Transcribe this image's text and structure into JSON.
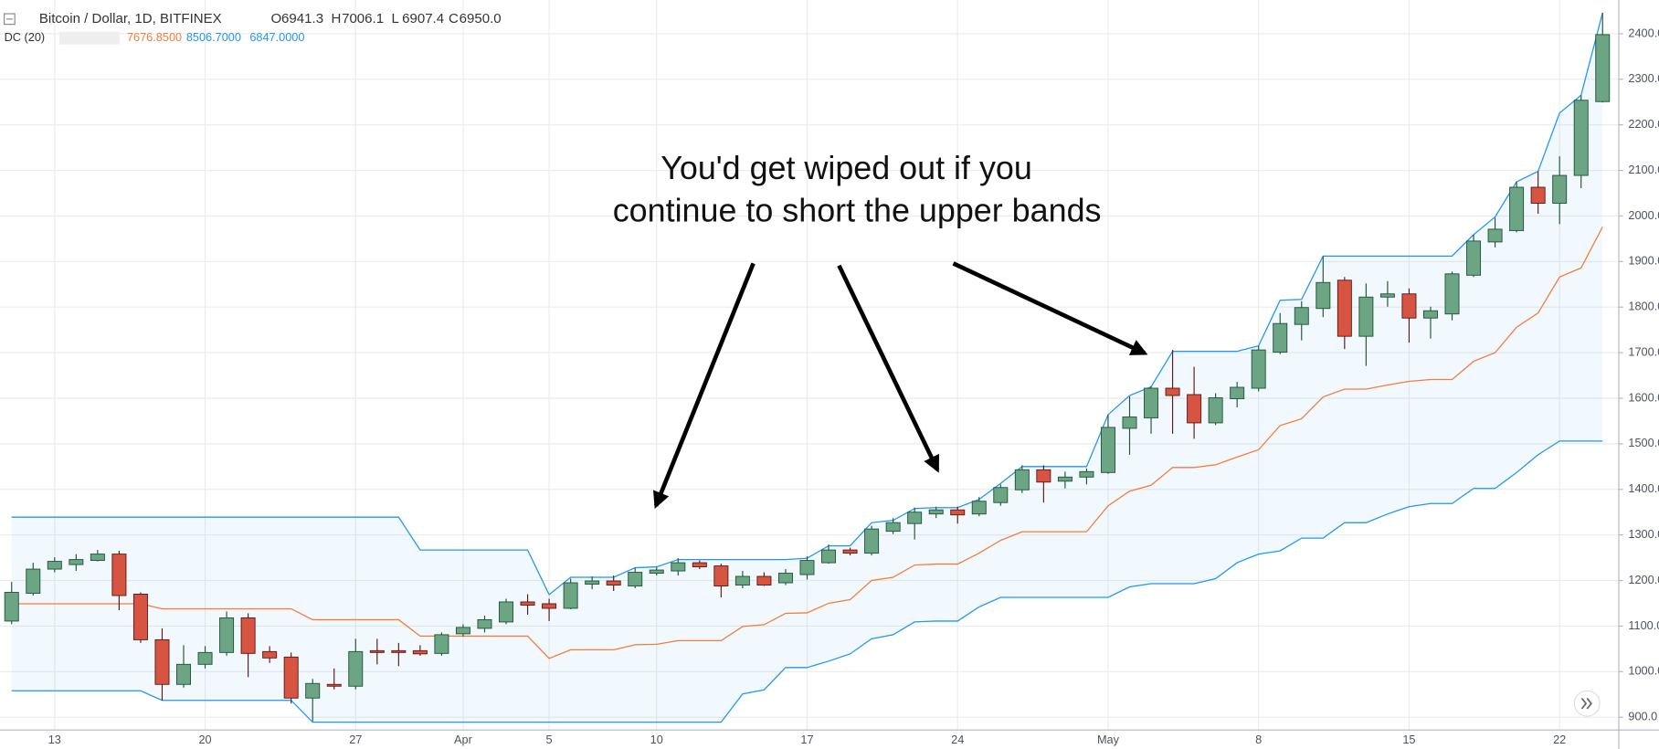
{
  "chart_data": {
    "type": "candlestick",
    "title": "Bitcoin / Dollar, 1D, BITFINEX",
    "ohlc_legend": [
      {
        "label": "O",
        "value": "6941.3"
      },
      {
        "label": "H",
        "value": "7006.1"
      },
      {
        "label": "L",
        "value": "6907.4"
      },
      {
        "label": "C",
        "value": "6950.0"
      }
    ],
    "indicator": {
      "label": "DC (20)",
      "values": [
        "7676.8500",
        "8506.7000",
        "6847.0000"
      ]
    },
    "annotation": [
      "You'd get wiped out if you",
      "continue to short the upper bands"
    ],
    "categories": [
      null,
      null,
      "13",
      null,
      null,
      null,
      null,
      null,
      null,
      "20",
      null,
      null,
      null,
      null,
      null,
      null,
      "27",
      null,
      null,
      null,
      null,
      "Apr",
      null,
      null,
      null,
      "5",
      null,
      null,
      null,
      null,
      "10",
      null,
      null,
      null,
      null,
      null,
      null,
      "17",
      null,
      null,
      null,
      null,
      null,
      null,
      "24",
      null,
      null,
      null,
      null,
      null,
      null,
      "May",
      null,
      null,
      null,
      null,
      null,
      null,
      "8",
      null,
      null,
      null,
      null,
      null,
      null,
      "15",
      null,
      null,
      null,
      null,
      null,
      null,
      "22",
      null,
      null
    ],
    "open": [
      1111,
      1172,
      1225,
      1235,
      1244,
      1258,
      1170,
      1070,
      972,
      1016,
      1042,
      1118,
      1044,
      1032,
      942,
      972,
      968,
      1046,
      1046,
      1046,
      1040,
      1083,
      1095,
      1109,
      1153,
      1149,
      1139,
      1192,
      1199,
      1188,
      1216,
      1221,
      1239,
      1232,
      1190,
      1209,
      1195,
      1213,
      1239,
      1267,
      1260,
      1308,
      1325,
      1346,
      1355,
      1346,
      1371,
      1399,
      1443,
      1418,
      1427,
      1437,
      1534,
      1557,
      1622,
      1608,
      1546,
      1599,
      1622,
      1701,
      1762,
      1797,
      1859,
      1736,
      1822,
      1829,
      1776,
      1785,
      1870,
      1943,
      1968,
      2063,
      2028,
      2089,
      2251
    ],
    "high": [
      1197,
      1239,
      1251,
      1258,
      1267,
      1265,
      1174,
      1095,
      1058,
      1056,
      1132,
      1128,
      1056,
      1042,
      984,
      1007,
      1072,
      1072,
      1063,
      1058,
      1086,
      1104,
      1123,
      1160,
      1170,
      1160,
      1204,
      1209,
      1211,
      1228,
      1230,
      1249,
      1244,
      1237,
      1221,
      1218,
      1225,
      1253,
      1279,
      1272,
      1320,
      1337,
      1360,
      1362,
      1362,
      1383,
      1411,
      1453,
      1453,
      1439,
      1446,
      1564,
      1604,
      1627,
      1706,
      1669,
      1611,
      1636,
      1715,
      1787,
      1813,
      1912,
      1866,
      1852,
      1857,
      1841,
      1801,
      1878,
      1959,
      1996,
      2075,
      2098,
      2131,
      2265,
      2446
    ],
    "low": [
      1104,
      1167,
      1218,
      1221,
      1242,
      1135,
      1063,
      937,
      965,
      1007,
      1035,
      988,
      1019,
      930,
      891,
      961,
      961,
      1016,
      1012,
      1035,
      1035,
      1077,
      1086,
      1104,
      1125,
      1111,
      1137,
      1181,
      1177,
      1183,
      1211,
      1211,
      1225,
      1163,
      1183,
      1188,
      1190,
      1202,
      1237,
      1255,
      1255,
      1302,
      1290,
      1337,
      1325,
      1341,
      1364,
      1392,
      1371,
      1402,
      1411,
      1434,
      1476,
      1522,
      1522,
      1511,
      1541,
      1580,
      1615,
      1697,
      1727,
      1778,
      1708,
      1671,
      1801,
      1722,
      1731,
      1771,
      1866,
      1931,
      1964,
      2005,
      1982,
      2061,
      2249
    ],
    "close": [
      1174,
      1225,
      1242,
      1246,
      1258,
      1167,
      1070,
      972,
      1016,
      1042,
      1118,
      1040,
      1030,
      942,
      974,
      968,
      1044,
      1042,
      1042,
      1039,
      1081,
      1097,
      1114,
      1153,
      1146,
      1139,
      1195,
      1199,
      1190,
      1218,
      1223,
      1239,
      1230,
      1188,
      1209,
      1190,
      1216,
      1244,
      1267,
      1260,
      1313,
      1327,
      1350,
      1355,
      1344,
      1374,
      1404,
      1443,
      1416,
      1427,
      1439,
      1536,
      1559,
      1622,
      1606,
      1546,
      1601,
      1624,
      1706,
      1764,
      1799,
      1854,
      1736,
      1822,
      1829,
      1776,
      1792,
      1873,
      1945,
      1971,
      2063,
      2028,
      2089,
      2254,
      2398
    ],
    "up_color": "#6ba583",
    "down_color": "#d75442",
    "channel": {
      "middle": {
        "color": "#f57c3a",
        "values": [
          1149,
          1149,
          1149,
          1149,
          1149,
          1149,
          1149,
          1138,
          1138,
          1138,
          1138,
          1138,
          1138,
          1138,
          1114,
          1114,
          1114,
          1114,
          1114,
          1078,
          1078,
          1078,
          1078,
          1078,
          1078,
          1029,
          1048,
          1048,
          1048,
          1059,
          1060,
          1068,
          1068,
          1068,
          1099,
          1103,
          1128,
          1129,
          1150,
          1158,
          1200,
          1207,
          1234,
          1236,
          1236,
          1260,
          1288,
          1307,
          1307,
          1307,
          1307,
          1364,
          1396,
          1409,
          1448,
          1448,
          1454,
          1471,
          1487,
          1540,
          1555,
          1603,
          1620,
          1620,
          1629,
          1637,
          1641,
          1641,
          1681,
          1700,
          1756,
          1787,
          1866,
          1886,
          1976
        ]
      },
      "upper": {
        "color": "#2196f3",
        "values": [
          1339,
          1339,
          1339,
          1339,
          1339,
          1339,
          1339,
          1339,
          1339,
          1339,
          1339,
          1339,
          1339,
          1339,
          1339,
          1339,
          1339,
          1339,
          1339,
          1267,
          1267,
          1267,
          1267,
          1267,
          1267,
          1169,
          1207,
          1207,
          1207,
          1228,
          1230,
          1246,
          1246,
          1246,
          1246,
          1246,
          1246,
          1249,
          1276,
          1276,
          1327,
          1332,
          1358,
          1360,
          1360,
          1378,
          1413,
          1450,
          1450,
          1450,
          1450,
          1564,
          1606,
          1625,
          1703,
          1703,
          1703,
          1703,
          1715,
          1815,
          1817,
          1912,
          1912,
          1912,
          1912,
          1912,
          1912,
          1912,
          1959,
          1998,
          2075,
          2098,
          2226,
          2265,
          2446
        ]
      },
      "lower": {
        "color": "#2196f3",
        "values": [
          958,
          958,
          958,
          958,
          958,
          958,
          958,
          937,
          937,
          937,
          937,
          937,
          937,
          937,
          889,
          889,
          889,
          889,
          889,
          889,
          889,
          889,
          889,
          889,
          889,
          889,
          889,
          889,
          889,
          889,
          889,
          889,
          889,
          889,
          951,
          960,
          1009,
          1009,
          1023,
          1039,
          1072,
          1081,
          1109,
          1111,
          1111,
          1142,
          1163,
          1163,
          1163,
          1163,
          1163,
          1163,
          1186,
          1193,
          1193,
          1193,
          1204,
          1239,
          1258,
          1265,
          1293,
          1293,
          1327,
          1327,
          1346,
          1362,
          1369,
          1369,
          1402,
          1402,
          1437,
          1476,
          1506,
          1506,
          1506
        ]
      },
      "fill": "rgba(33,150,243,0.06)"
    },
    "ylim": [
      872,
      2474
    ],
    "yticks": [
      {
        "value": 900,
        "label": "900.0"
      },
      {
        "value": 1000,
        "label": "1000.0"
      },
      {
        "value": 1100,
        "label": "1100.0"
      },
      {
        "value": 1200,
        "label": "1200.0"
      },
      {
        "value": 1300,
        "label": "1300.0"
      },
      {
        "value": 1400,
        "label": "1400.0"
      },
      {
        "value": 1500,
        "label": "1500.0"
      },
      {
        "value": 1600,
        "label": "1600.0"
      },
      {
        "value": 1700,
        "label": "1700.0"
      },
      {
        "value": 1800,
        "label": "1800.0"
      },
      {
        "value": 1900,
        "label": "1900.0"
      },
      {
        "value": 2000,
        "label": "2000.0"
      },
      {
        "value": 2100,
        "label": "2100.0"
      },
      {
        "value": 2200,
        "label": "2200.0"
      },
      {
        "value": 2300,
        "label": "2300.0"
      },
      {
        "value": 2400,
        "label": "2400.0"
      }
    ],
    "grid": true
  }
}
